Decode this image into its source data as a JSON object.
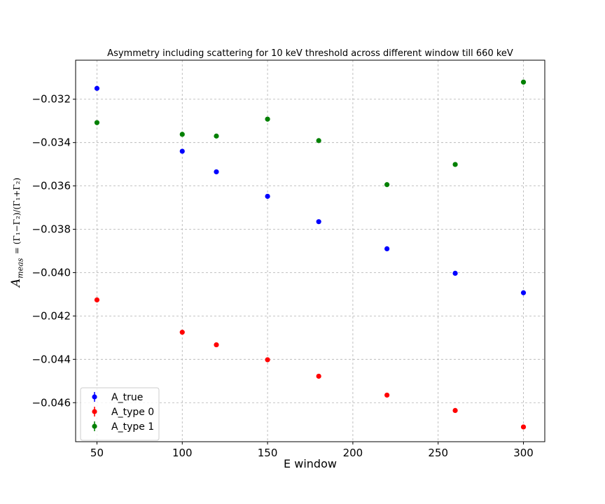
{
  "chart_data": {
    "type": "scatter",
    "title": "Asymmetry including scattering for 10 keV threshold across different window till 660 keV",
    "xlabel": "E window",
    "ylabel": "A_meas = (Γ1 − Γ2)/(Γ1 + Γ2)",
    "ylabel_main": "A",
    "ylabel_sub": "meas",
    "ylabel_eq": "= (Γ₁−Γ₂)/(Γ₁+Γ₂)",
    "xlim": [
      37.5,
      312.5
    ],
    "ylim": [
      -0.0478,
      -0.0302
    ],
    "xticks": [
      50,
      100,
      150,
      200,
      250,
      300
    ],
    "xtick_labels": [
      "50",
      "100",
      "150",
      "200",
      "250",
      "300"
    ],
    "yticks": [
      -0.046,
      -0.044,
      -0.042,
      -0.04,
      -0.038,
      -0.036,
      -0.034,
      -0.032
    ],
    "ytick_labels": [
      "−0.046",
      "−0.044",
      "−0.042",
      "−0.040",
      "−0.038",
      "−0.036",
      "−0.034",
      "−0.032"
    ],
    "grid": true,
    "legend_position": "lower-left",
    "x": [
      50,
      100,
      120,
      150,
      180,
      220,
      260,
      300
    ],
    "series": [
      {
        "name": "A_true",
        "color": "#0000ff",
        "values": [
          -0.0315,
          -0.0344,
          -0.03535,
          -0.03648,
          -0.03765,
          -0.0389,
          -0.04003,
          -0.04093
        ]
      },
      {
        "name": "A_type 0",
        "color": "#ff0000",
        "values": [
          -0.04126,
          -0.04275,
          -0.04333,
          -0.04402,
          -0.04478,
          -0.04565,
          -0.04636,
          -0.04712
        ]
      },
      {
        "name": "A_type 1",
        "color": "#008000",
        "values": [
          -0.03308,
          -0.03362,
          -0.0337,
          -0.03292,
          -0.03391,
          -0.03594,
          -0.03501,
          -0.03121
        ]
      }
    ]
  }
}
